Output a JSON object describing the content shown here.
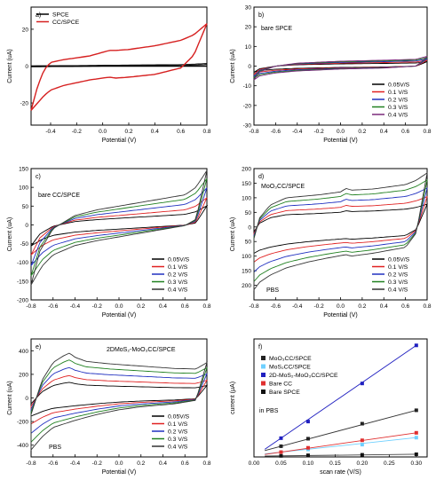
{
  "figure": {
    "background": "#ffffff"
  },
  "chart_data": [
    {
      "id": "a",
      "panel_label": "a)",
      "type": "line",
      "xlabel": "Potential (V)",
      "ylabel": "Current (uA)",
      "xlim": [
        -0.55,
        0.8
      ],
      "ylim": [
        -32,
        32
      ],
      "xticks": [
        -0.4,
        -0.2,
        0.0,
        0.2,
        0.4,
        0.6,
        0.8
      ],
      "yticks": [
        -20,
        0,
        20
      ],
      "legend": {
        "placement": "top-left",
        "entries": [
          "SPCE",
          "CC/SPCE"
        ]
      },
      "series": [
        {
          "name": "SPCE",
          "color": "#000000",
          "kind": "cv",
          "upper": [
            [
              -0.55,
              0.1
            ],
            [
              -0.2,
              0.3
            ],
            [
              0.2,
              0.6
            ],
            [
              0.6,
              0.8
            ],
            [
              0.8,
              1.4
            ]
          ],
          "lower": [
            [
              -0.55,
              -0.4
            ],
            [
              -0.2,
              -0.2
            ],
            [
              0.2,
              0.1
            ],
            [
              0.6,
              0.3
            ],
            [
              0.8,
              0.9
            ]
          ]
        },
        {
          "name": "CC/SPCE",
          "color": "#d62020",
          "kind": "cv",
          "upper": [
            [
              -0.55,
              -24
            ],
            [
              -0.5,
              -11
            ],
            [
              -0.45,
              -2
            ],
            [
              -0.4,
              2
            ],
            [
              -0.3,
              3.5
            ],
            [
              -0.1,
              5.5
            ],
            [
              0.05,
              8.5
            ],
            [
              0.1,
              8.5
            ],
            [
              0.2,
              9
            ],
            [
              0.4,
              11
            ],
            [
              0.6,
              14
            ],
            [
              0.7,
              17
            ],
            [
              0.8,
              23
            ]
          ],
          "lower": [
            [
              -0.55,
              -24
            ],
            [
              -0.5,
              -20
            ],
            [
              -0.45,
              -16
            ],
            [
              -0.4,
              -13
            ],
            [
              -0.3,
              -10.5
            ],
            [
              -0.1,
              -7.5
            ],
            [
              0.05,
              -6
            ],
            [
              0.1,
              -6.5
            ],
            [
              0.2,
              -6
            ],
            [
              0.4,
              -4.5
            ],
            [
              0.6,
              -1
            ],
            [
              0.7,
              6
            ],
            [
              0.8,
              23
            ]
          ]
        }
      ]
    },
    {
      "id": "b",
      "panel_label": "b)",
      "type": "line",
      "annotation": "bare SPCE",
      "xlabel": "Potential (V)",
      "ylabel": "Current (uA)",
      "xlim": [
        -0.8,
        0.8
      ],
      "ylim": [
        -30,
        30
      ],
      "xticks": [
        -0.8,
        -0.6,
        -0.4,
        -0.2,
        0.0,
        0.2,
        0.4,
        0.6,
        0.8
      ],
      "yticks": [
        -30,
        -20,
        -10,
        0,
        10,
        20,
        30
      ],
      "legend": {
        "placement": "bottom-right",
        "entries": [
          "0.05V/S",
          "0.1 V/S",
          "0.2 V/S",
          "0.3 V/S",
          "0.4 V/S"
        ]
      },
      "series": [
        {
          "name": "0.05V/S",
          "color": "#000000",
          "scale": 0.45
        },
        {
          "name": "0.1 V/S",
          "color": "#e02020",
          "scale": 0.6
        },
        {
          "name": "0.2 V/S",
          "color": "#2030c0",
          "scale": 0.75
        },
        {
          "name": "0.3 V/S",
          "color": "#208020",
          "scale": 0.88
        },
        {
          "name": "0.4 V/S",
          "color": "#7a2a7a",
          "scale": 1.0
        }
      ],
      "base": {
        "upper": [
          [
            -0.8,
            -7
          ],
          [
            -0.75,
            -3
          ],
          [
            -0.6,
            0
          ],
          [
            -0.4,
            1.5
          ],
          [
            0,
            2.5
          ],
          [
            0.4,
            3
          ],
          [
            0.7,
            3.5
          ],
          [
            0.8,
            5
          ]
        ],
        "lower": [
          [
            -0.8,
            -7
          ],
          [
            -0.75,
            -5
          ],
          [
            -0.6,
            -3.5
          ],
          [
            -0.4,
            -2.5
          ],
          [
            0,
            -1.5
          ],
          [
            0.4,
            -1
          ],
          [
            0.7,
            0
          ],
          [
            0.8,
            5
          ]
        ]
      }
    },
    {
      "id": "c",
      "panel_label": "c)",
      "type": "line",
      "annotation": "bare CC/SPCE",
      "xlabel": "Potential (V)",
      "ylabel": "Current (uA)",
      "xlim": [
        -0.8,
        0.8
      ],
      "ylim": [
        -200,
        150
      ],
      "xticks": [
        -0.8,
        -0.6,
        -0.4,
        -0.2,
        0.0,
        0.2,
        0.4,
        0.6,
        0.8
      ],
      "yticks": [
        -200,
        -150,
        -100,
        -50,
        0,
        50,
        100,
        150
      ],
      "legend": {
        "placement": "bottom-right",
        "entries": [
          "0.05V/S",
          "0.1 V/S",
          "0.2 V/S",
          "0.3 V/S",
          "0.4 V/S"
        ]
      },
      "series": [
        {
          "name": "0.05V/S",
          "color": "#000000",
          "scale": 0.35
        },
        {
          "name": "0.1 V/S",
          "color": "#e02020",
          "scale": 0.5
        },
        {
          "name": "0.2 V/S",
          "color": "#2030c0",
          "scale": 0.68
        },
        {
          "name": "0.3 V/S",
          "color": "#208020",
          "scale": 0.85
        },
        {
          "name": "0.4 V/S",
          "color": "#333333",
          "scale": 1.0
        }
      ],
      "base": {
        "upper": [
          [
            -0.8,
            -160
          ],
          [
            -0.72,
            -70
          ],
          [
            -0.6,
            -10
          ],
          [
            -0.4,
            25
          ],
          [
            -0.2,
            40
          ],
          [
            0,
            50
          ],
          [
            0.2,
            60
          ],
          [
            0.4,
            70
          ],
          [
            0.6,
            80
          ],
          [
            0.7,
            100
          ],
          [
            0.8,
            145
          ]
        ],
        "lower": [
          [
            -0.8,
            -160
          ],
          [
            -0.7,
            -110
          ],
          [
            -0.6,
            -80
          ],
          [
            -0.4,
            -55
          ],
          [
            -0.2,
            -42
          ],
          [
            0,
            -32
          ],
          [
            0.2,
            -22
          ],
          [
            0.4,
            -12
          ],
          [
            0.6,
            -2
          ],
          [
            0.7,
            15
          ],
          [
            0.8,
            145
          ]
        ]
      }
    },
    {
      "id": "d",
      "panel_label": "d)",
      "type": "line",
      "annotation": "MoO₃CC/SPCE",
      "annotation2": "PBS",
      "xlabel": "Potential (V)",
      "ylabel": "Current (uA)",
      "xlim": [
        -0.8,
        0.8
      ],
      "ylim": [
        -250,
        200
      ],
      "xticks": [
        -0.8,
        -0.6,
        -0.4,
        -0.2,
        0.0,
        0.2,
        0.4,
        0.6,
        0.8
      ],
      "yticks": [
        -200,
        -150,
        -100,
        -50,
        0,
        50,
        100,
        150,
        200
      ],
      "ytick_labels": [
        "200",
        "150",
        "100",
        "50",
        "0",
        "50",
        "100",
        "150",
        "200"
      ],
      "legend": {
        "placement": "bottom-right",
        "entries": [
          "0.05V/S",
          "0.1 V/S",
          "0.2 V/S",
          "0.3 V/S",
          "0.4 V/S"
        ]
      },
      "series": [
        {
          "name": "0.05V/S",
          "color": "#000000",
          "scale": 0.42
        },
        {
          "name": "0.1 V/S",
          "color": "#e02020",
          "scale": 0.56
        },
        {
          "name": "0.2 V/S",
          "color": "#2030c0",
          "scale": 0.72
        },
        {
          "name": "0.3 V/S",
          "color": "#208020",
          "scale": 0.87
        },
        {
          "name": "0.4 V/S",
          "color": "#333333",
          "scale": 1.0
        }
      ],
      "base": {
        "upper": [
          [
            -0.8,
            -40
          ],
          [
            -0.75,
            30
          ],
          [
            -0.65,
            75
          ],
          [
            -0.5,
            100
          ],
          [
            -0.2,
            110
          ],
          [
            0,
            120
          ],
          [
            0.05,
            132
          ],
          [
            0.1,
            126
          ],
          [
            0.3,
            130
          ],
          [
            0.6,
            145
          ],
          [
            0.7,
            160
          ],
          [
            0.8,
            185
          ]
        ],
        "lower": [
          [
            -0.8,
            -215
          ],
          [
            -0.75,
            -190
          ],
          [
            -0.65,
            -165
          ],
          [
            -0.5,
            -140
          ],
          [
            -0.3,
            -120
          ],
          [
            -0.1,
            -105
          ],
          [
            0.05,
            -95
          ],
          [
            0.1,
            -100
          ],
          [
            0.3,
            -90
          ],
          [
            0.6,
            -70
          ],
          [
            0.7,
            -20
          ],
          [
            0.8,
            185
          ]
        ]
      }
    },
    {
      "id": "e",
      "panel_label": "e)",
      "type": "line",
      "annotation": "2DMoS₂-MoO₃CC/SPCE",
      "annotation2": "PBS",
      "xlabel": "Potential (V)",
      "ylabel": "Current (uA)",
      "xlim": [
        -0.8,
        0.8
      ],
      "ylim": [
        -500,
        500
      ],
      "xticks": [
        -0.8,
        -0.6,
        -0.4,
        -0.2,
        0.0,
        0.2,
        0.4,
        0.6,
        0.8
      ],
      "yticks": [
        -400,
        -200,
        0,
        200,
        400
      ],
      "legend": {
        "placement": "bottom-right",
        "entries": [
          "0.05V/S",
          "0.1 V/S",
          "0.2 V/S",
          "0.3 V/S",
          "0.4 V/S"
        ]
      },
      "series": [
        {
          "name": "0.05V/S",
          "color": "#000000",
          "scale": 0.35
        },
        {
          "name": "0.1 V/S",
          "color": "#e02020",
          "scale": 0.5
        },
        {
          "name": "0.2 V/S",
          "color": "#2030c0",
          "scale": 0.68
        },
        {
          "name": "0.3 V/S",
          "color": "#208020",
          "scale": 0.85
        },
        {
          "name": "0.4 V/S",
          "color": "#333333",
          "scale": 1.0
        }
      ],
      "base": {
        "upper": [
          [
            -0.8,
            -140
          ],
          [
            -0.7,
            150
          ],
          [
            -0.6,
            300
          ],
          [
            -0.5,
            360
          ],
          [
            -0.45,
            380
          ],
          [
            -0.4,
            345
          ],
          [
            -0.3,
            310
          ],
          [
            -0.1,
            290
          ],
          [
            0.2,
            270
          ],
          [
            0.5,
            250
          ],
          [
            0.7,
            245
          ],
          [
            0.8,
            300
          ]
        ],
        "lower": [
          [
            -0.8,
            -440
          ],
          [
            -0.7,
            -330
          ],
          [
            -0.6,
            -250
          ],
          [
            -0.4,
            -190
          ],
          [
            -0.2,
            -140
          ],
          [
            0,
            -100
          ],
          [
            0.2,
            -75
          ],
          [
            0.5,
            -50
          ],
          [
            0.7,
            -20
          ],
          [
            0.8,
            300
          ]
        ]
      }
    },
    {
      "id": "f",
      "panel_label": "f)",
      "type": "scatter",
      "annotation": "in PBS",
      "xlabel": "scan rate (V/S)",
      "ylabel": "current (μA)",
      "xlim": [
        0.0,
        0.32
      ],
      "ylim": [
        0,
        220
      ],
      "xticks": [
        0.0,
        0.05,
        0.1,
        0.15,
        0.2,
        0.25,
        0.3
      ],
      "xtick_labels": [
        "0.00",
        "0.05",
        "0.10",
        "0.15",
        "0.20",
        "0.25",
        "0.30"
      ],
      "yticks": [],
      "legend": {
        "placement": "top-left",
        "entries": [
          "MoO₃CC/SPCE",
          "MoS₂CC/SPCE",
          "2D-MoS₂-MoO₃CC/SPCE",
          "Bare CC",
          "Bare SPCE"
        ]
      },
      "x": [
        0.05,
        0.1,
        0.2,
        0.3
      ],
      "series": [
        {
          "name": "MoO₃CC/SPCE",
          "color": "#222222",
          "line": "#333333",
          "values": [
            20,
            34,
            62,
            87
          ],
          "fit": [
            0.02,
            0.3,
            6,
            287
          ]
        },
        {
          "name": "MoS₂CC/SPCE",
          "color": "#6fd0ff",
          "line": "#6fd0ff",
          "values": [
            9,
            14,
            23,
            36
          ],
          "fit": [
            0.02,
            0.3,
            2,
            117
          ]
        },
        {
          "name": "2D-MoS₂-MoO₃CC/SPCE",
          "color": "#2020c0",
          "line": "#2020c0",
          "values": [
            35,
            66,
            137,
            208
          ],
          "fit": [
            0.02,
            0.3,
            0,
            690
          ]
        },
        {
          "name": "Bare CC",
          "color": "#e03030",
          "line": "#e03030",
          "values": [
            9,
            17,
            31,
            45
          ],
          "fit": [
            0.02,
            0.3,
            3,
            140
          ]
        },
        {
          "name": "Bare SPCE",
          "color": "#111111",
          "line": "#444444",
          "values": [
            2,
            3,
            4,
            5
          ],
          "fit": [
            0.02,
            0.3,
            1.5,
            12
          ]
        }
      ]
    }
  ]
}
